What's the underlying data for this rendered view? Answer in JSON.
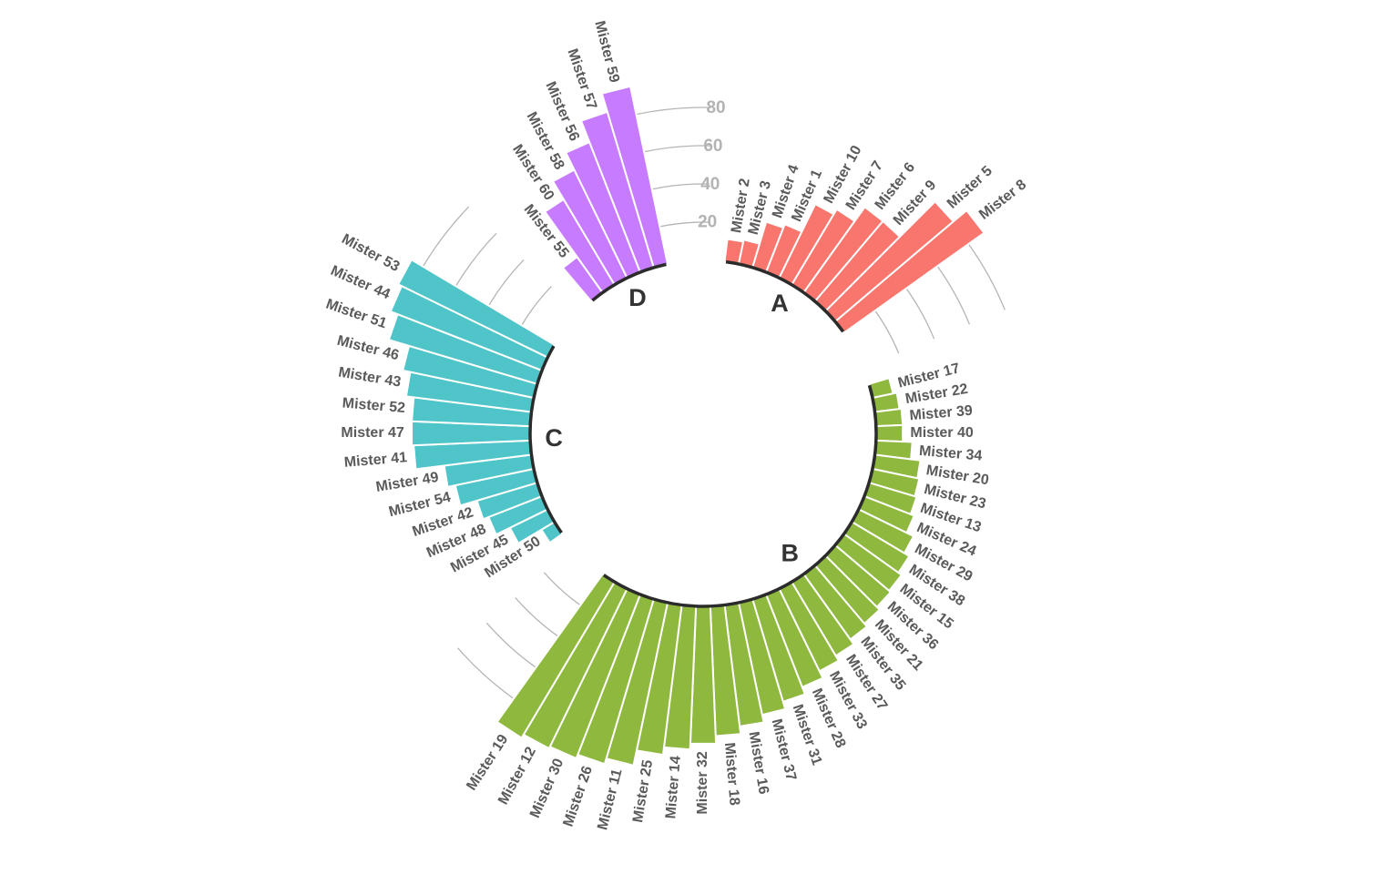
{
  "chart_data": {
    "type": "bar",
    "layout": "circular",
    "groups": [
      {
        "name": "A",
        "color": "#F8766D"
      },
      {
        "name": "B",
        "color": "#8FB83F"
      },
      {
        "name": "C",
        "color": "#4FC4C9"
      },
      {
        "name": "D",
        "color": "#C77CFF"
      }
    ],
    "y_ticks": [
      "20",
      "40",
      "60",
      "80"
    ],
    "ylim": [
      0,
      100
    ],
    "data": [
      {
        "group": "A",
        "label": "Mister 2",
        "value": 12
      },
      {
        "group": "A",
        "label": "Mister 3",
        "value": 13
      },
      {
        "group": "A",
        "label": "Mister 4",
        "value": 25
      },
      {
        "group": "A",
        "label": "Mister 1",
        "value": 27
      },
      {
        "group": "A",
        "label": "Mister 10",
        "value": 43
      },
      {
        "group": "A",
        "label": "Mister 7",
        "value": 46
      },
      {
        "group": "A",
        "label": "Mister 6",
        "value": 55
      },
      {
        "group": "A",
        "label": "Mister 9",
        "value": 55
      },
      {
        "group": "A",
        "label": "Mister 5",
        "value": 81
      },
      {
        "group": "A",
        "label": "Mister 8",
        "value": 90
      },
      {
        "group": "B",
        "label": "Mister 17",
        "value": 11
      },
      {
        "group": "B",
        "label": "Mister 22",
        "value": 13
      },
      {
        "group": "B",
        "label": "Mister 39",
        "value": 14
      },
      {
        "group": "B",
        "label": "Mister 40",
        "value": 14
      },
      {
        "group": "B",
        "label": "Mister 34",
        "value": 19
      },
      {
        "group": "B",
        "label": "Mister 20",
        "value": 24
      },
      {
        "group": "B",
        "label": "Mister 23",
        "value": 25
      },
      {
        "group": "B",
        "label": "Mister 13",
        "value": 26
      },
      {
        "group": "B",
        "label": "Mister 24",
        "value": 28
      },
      {
        "group": "B",
        "label": "Mister 29",
        "value": 32
      },
      {
        "group": "B",
        "label": "Mister 38",
        "value": 35
      },
      {
        "group": "B",
        "label": "Mister 15",
        "value": 37
      },
      {
        "group": "B",
        "label": "Mister 36",
        "value": 38
      },
      {
        "group": "B",
        "label": "Mister 21",
        "value": 40
      },
      {
        "group": "B",
        "label": "Mister 35",
        "value": 42
      },
      {
        "group": "B",
        "label": "Mister 27",
        "value": 45
      },
      {
        "group": "B",
        "label": "Mister 33",
        "value": 48
      },
      {
        "group": "B",
        "label": "Mister 28",
        "value": 52
      },
      {
        "group": "B",
        "label": "Mister 31",
        "value": 56
      },
      {
        "group": "B",
        "label": "Mister 37",
        "value": 60
      },
      {
        "group": "B",
        "label": "Mister 16",
        "value": 64
      },
      {
        "group": "B",
        "label": "Mister 18",
        "value": 68
      },
      {
        "group": "B",
        "label": "Mister 32",
        "value": 72
      },
      {
        "group": "B",
        "label": "Mister 14",
        "value": 75
      },
      {
        "group": "B",
        "label": "Mister 25",
        "value": 79
      },
      {
        "group": "B",
        "label": "Mister 11",
        "value": 87
      },
      {
        "group": "B",
        "label": "Mister 26",
        "value": 90
      },
      {
        "group": "B",
        "label": "Mister 30",
        "value": 92
      },
      {
        "group": "B",
        "label": "Mister 12",
        "value": 93
      },
      {
        "group": "B",
        "label": "Mister 19",
        "value": 95
      },
      {
        "group": "C",
        "label": "Mister 50",
        "value": 8
      },
      {
        "group": "C",
        "label": "Mister 45",
        "value": 22
      },
      {
        "group": "C",
        "label": "Mister 48",
        "value": 30
      },
      {
        "group": "C",
        "label": "Mister 42",
        "value": 33
      },
      {
        "group": "C",
        "label": "Mister 54",
        "value": 42
      },
      {
        "group": "C",
        "label": "Mister 49",
        "value": 46
      },
      {
        "group": "C",
        "label": "Mister 41",
        "value": 61
      },
      {
        "group": "C",
        "label": "Mister 47",
        "value": 62
      },
      {
        "group": "C",
        "label": "Mister 52",
        "value": 62
      },
      {
        "group": "C",
        "label": "Mister 43",
        "value": 66
      },
      {
        "group": "C",
        "label": "Mister 46",
        "value": 70
      },
      {
        "group": "C",
        "label": "Mister 51",
        "value": 81
      },
      {
        "group": "C",
        "label": "Mister 44",
        "value": 85
      },
      {
        "group": "C",
        "label": "Mister 53",
        "value": 87
      },
      {
        "group": "D",
        "label": "Mister 55",
        "value": 23
      },
      {
        "group": "D",
        "label": "Mister 60",
        "value": 52
      },
      {
        "group": "D",
        "label": "Mister 58",
        "value": 63
      },
      {
        "group": "D",
        "label": "Mister 56",
        "value": 73
      },
      {
        "group": "D",
        "label": "Mister 57",
        "value": 85
      },
      {
        "group": "D",
        "label": "Mister 59",
        "value": 95
      }
    ]
  }
}
